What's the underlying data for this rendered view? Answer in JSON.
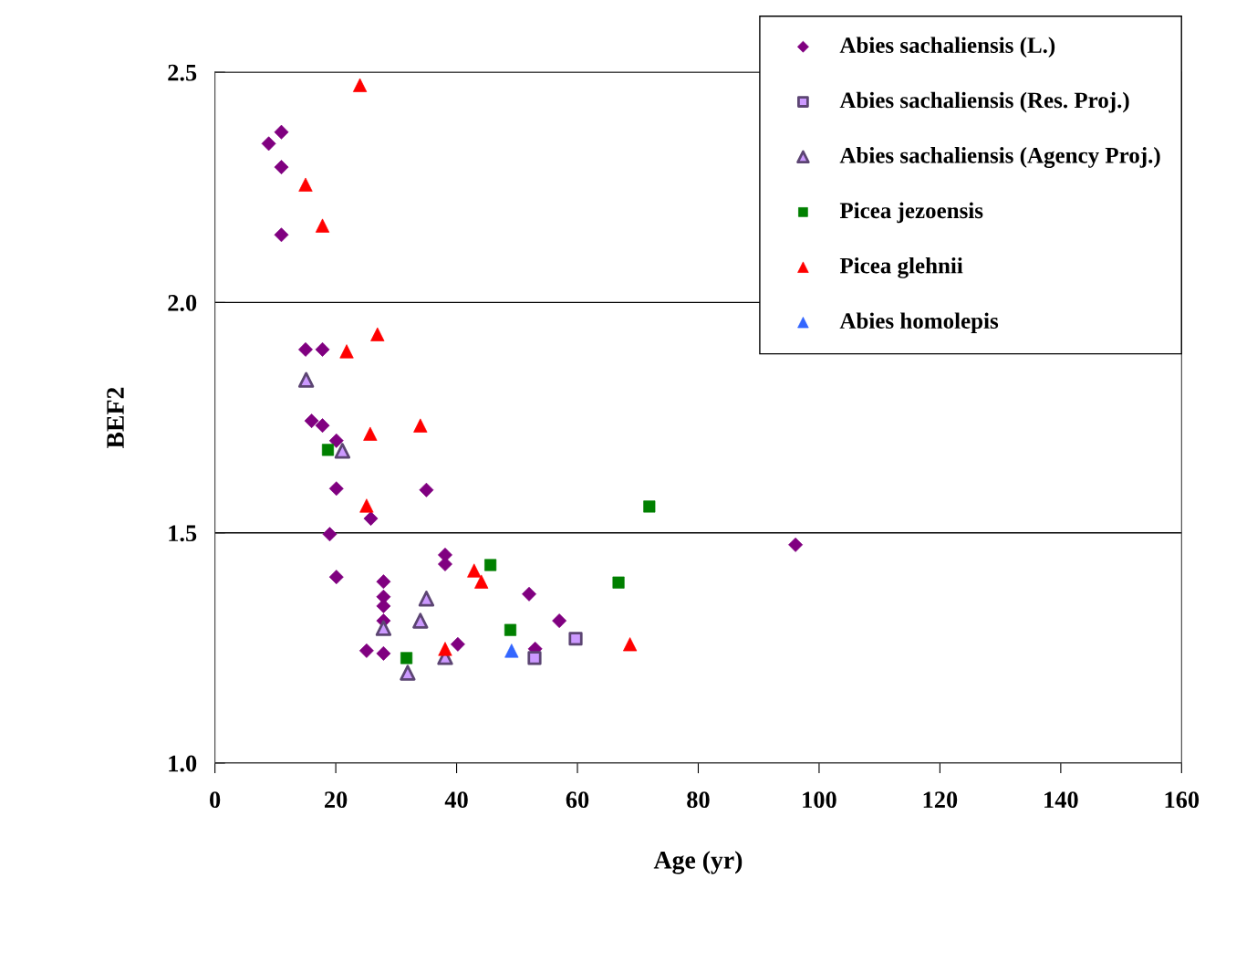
{
  "chart_data": {
    "type": "scatter",
    "xlabel": "Age (yr)",
    "ylabel": "BEF2",
    "xlim": [
      0,
      160
    ],
    "xticks": [
      0,
      20,
      40,
      60,
      80,
      100,
      120,
      140,
      160
    ],
    "ylim": [
      1.0,
      2.5
    ],
    "yticks": [
      {
        "value": 1.0,
        "label": "1.0"
      },
      {
        "value": 1.5,
        "label": "1.5"
      },
      {
        "value": 2.0,
        "label": "2.0"
      },
      {
        "value": 2.5,
        "label": "2.5"
      }
    ],
    "grid": "y",
    "legend": "top right",
    "series": [
      {
        "name": "Abies sachaliensis (L.)",
        "color": "#800080",
        "marker": "diamond",
        "x": [
          8.9,
          11.0,
          11.0,
          11.0,
          15.0,
          17.8,
          16.0,
          17.8,
          20.1,
          20.1,
          35.0,
          25.8,
          19.0,
          38.1,
          38.1,
          20.1,
          27.9,
          27.9,
          27.9,
          27.9,
          25.1,
          27.9,
          40.2,
          52.0,
          57.0,
          53.0,
          96.1
        ],
        "values": [
          2.345,
          2.37,
          2.294,
          2.147,
          1.898,
          1.898,
          1.743,
          1.733,
          1.7,
          1.596,
          1.593,
          1.531,
          1.497,
          1.452,
          1.432,
          1.404,
          1.394,
          1.361,
          1.341,
          1.309,
          1.244,
          1.238,
          1.258,
          1.367,
          1.309,
          1.248,
          1.474
        ]
      },
      {
        "name": "Abies sachaliensis (Res. Proj.)",
        "color": "#cc99ff",
        "marker": "square",
        "x": [
          59.7,
          52.9
        ],
        "values": [
          1.27,
          1.228
        ]
      },
      {
        "name": "Abies sachaliensis (Agency Proj.)",
        "color": "#cc99ff",
        "marker": "triangle",
        "x": [
          15.1,
          21.1,
          27.9,
          35.0,
          34.0,
          38.1,
          31.9
        ],
        "values": [
          1.832,
          1.678,
          1.293,
          1.357,
          1.309,
          1.23,
          1.196
        ]
      },
      {
        "name": "Picea jezoensis",
        "color": "#008000",
        "marker": "square",
        "x": [
          18.7,
          31.7,
          45.6,
          48.9,
          66.8,
          71.9
        ],
        "values": [
          1.68,
          1.228,
          1.43,
          1.289,
          1.392,
          1.557
        ]
      },
      {
        "name": "Picea glehnii",
        "color": "#ff0000",
        "marker": "triangle",
        "x": [
          24.0,
          15.0,
          17.8,
          21.8,
          26.9,
          25.7,
          34.0,
          25.1,
          42.9,
          44.1,
          38.1,
          68.7
        ],
        "values": [
          2.472,
          2.256,
          2.167,
          1.894,
          1.931,
          1.715,
          1.733,
          1.559,
          1.418,
          1.394,
          1.248,
          1.258
        ]
      },
      {
        "name": "Abies homolepis",
        "color": "#3366ff",
        "marker": "triangle",
        "x": [
          49.1
        ],
        "values": [
          1.244
        ]
      }
    ]
  }
}
